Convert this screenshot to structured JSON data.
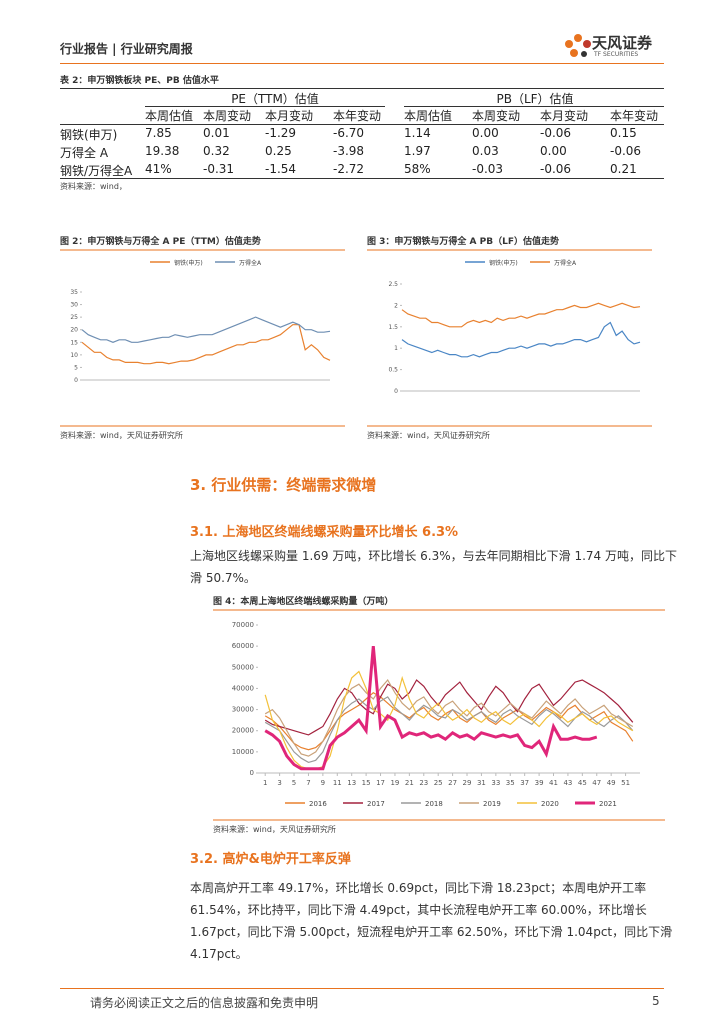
{
  "header": {
    "title": "行业报告 | 行业研究周报",
    "brand": "天风证券",
    "brand_en": "TF SECURITIES"
  },
  "table": {
    "title": "表 2：申万钢铁板块 PE、PB 估值水平",
    "groups": [
      "PE（TTM）估值",
      "PB（LF）估值"
    ],
    "columns": [
      "本周估值",
      "本周变动",
      "本月变动",
      "本年变动",
      "本周估值",
      "本周变动",
      "本月变动",
      "本年变动"
    ],
    "rows": [
      [
        "钢铁(申万)",
        "7.85",
        "0.01",
        "-1.29",
        "-6.70",
        "1.14",
        "0.00",
        "-0.06",
        "0.15"
      ],
      [
        "万得全 A",
        "19.38",
        "0.32",
        "0.25",
        "-3.98",
        "1.97",
        "0.03",
        "0.00",
        "-0.06"
      ],
      [
        "钢铁/万得全A",
        "41%",
        "-0.31",
        "-1.54",
        "-2.72",
        "58%",
        "-0.03",
        "-0.06",
        "0.21"
      ]
    ],
    "source": "资料来源：wind，"
  },
  "chart_data": [
    {
      "type": "line",
      "title": "图 2：申万钢铁与万得全 A PE（TTM）估值走势",
      "source": "资料来源：wind，天风证券研究所",
      "ylim": [
        0,
        35
      ],
      "yticks": [
        0,
        5,
        10,
        15,
        20,
        25,
        30,
        35
      ],
      "legend": "top",
      "series": [
        {
          "name": "钢铁(申万)",
          "color": "#e8812f",
          "values": [
            15,
            13,
            11,
            11,
            9,
            8,
            8,
            7,
            7,
            7,
            6.5,
            6.5,
            7,
            7,
            6.5,
            7,
            7.5,
            7.5,
            8,
            9,
            10,
            10,
            11,
            12,
            13,
            14,
            14,
            15,
            15,
            16,
            16,
            17,
            18,
            20,
            22,
            22,
            12,
            14,
            12,
            9,
            7.85
          ]
        },
        {
          "name": "万得全A",
          "color": "#6f8fb3",
          "values": [
            20,
            18,
            17,
            16,
            16,
            15,
            16,
            16,
            15,
            15,
            15.5,
            16,
            16.5,
            17,
            17,
            18,
            17.5,
            17,
            17.5,
            18,
            18,
            18,
            19,
            20,
            21,
            22,
            23,
            24,
            25,
            24,
            23,
            22,
            21,
            22,
            23,
            22,
            20,
            20,
            19,
            19,
            19.38
          ]
        }
      ]
    },
    {
      "type": "line",
      "title": "图 3：申万钢铁与万得全 A PB（LF）估值走势",
      "source": "资料来源：wind，天风证券研究所",
      "ylim": [
        0,
        2.5
      ],
      "yticks": [
        0,
        0.5,
        1,
        1.5,
        2,
        2.5
      ],
      "legend": "top",
      "series": [
        {
          "name": "钢铁(申万)",
          "color": "#4a86c5",
          "values": [
            1.2,
            1.1,
            1.05,
            1.0,
            0.95,
            0.9,
            0.95,
            0.9,
            0.85,
            0.85,
            0.8,
            0.8,
            0.85,
            0.8,
            0.85,
            0.9,
            0.9,
            0.95,
            1.0,
            1.0,
            1.05,
            1.0,
            1.05,
            1.1,
            1.1,
            1.05,
            1.1,
            1.1,
            1.15,
            1.2,
            1.2,
            1.15,
            1.2,
            1.25,
            1.5,
            1.6,
            1.3,
            1.4,
            1.2,
            1.1,
            1.14
          ]
        },
        {
          "name": "万得全A",
          "color": "#e8812f",
          "values": [
            1.9,
            1.8,
            1.75,
            1.7,
            1.7,
            1.6,
            1.6,
            1.55,
            1.5,
            1.5,
            1.5,
            1.6,
            1.65,
            1.6,
            1.65,
            1.6,
            1.7,
            1.65,
            1.7,
            1.7,
            1.75,
            1.7,
            1.75,
            1.8,
            1.8,
            1.85,
            1.9,
            1.9,
            1.95,
            2.0,
            1.95,
            1.95,
            2.0,
            2.05,
            2.0,
            1.95,
            2.0,
            2.05,
            2.0,
            1.95,
            1.97
          ]
        }
      ]
    },
    {
      "type": "line",
      "title": "图 4：本周上海地区终端线螺采购量（万吨）",
      "source": "资料来源：wind，天风证券研究所",
      "xlim": [
        0,
        53
      ],
      "xticks": [
        1,
        3,
        5,
        7,
        9,
        11,
        13,
        15,
        17,
        19,
        21,
        23,
        25,
        27,
        29,
        31,
        33,
        35,
        37,
        39,
        41,
        43,
        45,
        47,
        49,
        51
      ],
      "ylim": [
        0,
        70000
      ],
      "yticks": [
        0,
        10000,
        20000,
        30000,
        40000,
        50000,
        60000,
        70000
      ],
      "legend": "bottom",
      "x": [
        1,
        2,
        3,
        4,
        5,
        6,
        7,
        8,
        9,
        10,
        11,
        12,
        13,
        14,
        15,
        16,
        17,
        18,
        19,
        20,
        21,
        22,
        23,
        24,
        25,
        26,
        27,
        28,
        29,
        30,
        31,
        32,
        33,
        34,
        35,
        36,
        37,
        38,
        39,
        40,
        41,
        42,
        43,
        44,
        45,
        46,
        47,
        48,
        49,
        50,
        51,
        52
      ],
      "series": [
        {
          "name": "2016",
          "color": "#e8812f",
          "values": [
            27000,
            25000,
            22000,
            18000,
            14000,
            12000,
            11000,
            12000,
            15000,
            20000,
            25000,
            28000,
            30000,
            32000,
            35000,
            38000,
            36000,
            33000,
            30000,
            28000,
            26000,
            29000,
            31000,
            27000,
            25000,
            28000,
            30000,
            26000,
            24000,
            27000,
            29000,
            25000,
            23000,
            26000,
            28000,
            30000,
            27000,
            25000,
            28000,
            31000,
            29000,
            26000,
            30000,
            32000,
            28000,
            25000,
            27000,
            29000,
            24000,
            22000,
            20000,
            15000
          ]
        },
        {
          "name": "2017",
          "color": "#a3223e",
          "values": [
            25000,
            23000,
            22000,
            21000,
            20000,
            19000,
            18000,
            20000,
            22000,
            28000,
            35000,
            40000,
            38000,
            33000,
            30000,
            28000,
            36000,
            42000,
            40000,
            35000,
            38000,
            44000,
            41000,
            36000,
            32000,
            37000,
            40000,
            43000,
            38000,
            34000,
            30000,
            36000,
            41000,
            38000,
            33000,
            29000,
            35000,
            40000,
            42000,
            37000,
            32000,
            35000,
            39000,
            43000,
            44000,
            42000,
            40000,
            38000,
            35000,
            32000,
            28000,
            24000
          ]
        },
        {
          "name": "2018",
          "color": "#9a9a9a",
          "values": [
            24000,
            22000,
            20000,
            15000,
            10000,
            7000,
            5000,
            6000,
            10000,
            18000,
            25000,
            30000,
            33000,
            35000,
            32000,
            30000,
            34000,
            36000,
            31000,
            28000,
            25000,
            29000,
            32000,
            30000,
            27000,
            26000,
            30000,
            28000,
            25000,
            27000,
            29000,
            26000,
            24000,
            28000,
            30000,
            27000,
            25000,
            23000,
            27000,
            30000,
            28000,
            25000,
            22000,
            26000,
            29000,
            27000,
            24000,
            22000,
            25000,
            27000,
            24000,
            20000
          ]
        },
        {
          "name": "2019",
          "color": "#c9a27a",
          "values": [
            28000,
            30000,
            26000,
            20000,
            14000,
            9000,
            8000,
            10000,
            15000,
            22000,
            30000,
            36000,
            40000,
            42000,
            38000,
            35000,
            40000,
            44000,
            38000,
            33000,
            30000,
            34000,
            36000,
            31000,
            28000,
            32000,
            34000,
            30000,
            27000,
            31000,
            33000,
            29000,
            27000,
            30000,
            33000,
            30000,
            28000,
            26000,
            30000,
            34000,
            31000,
            28000,
            32000,
            35000,
            31000,
            28000,
            30000,
            32000,
            28000,
            26000,
            24000,
            22000
          ]
        },
        {
          "name": "2020",
          "color": "#f3c13a",
          "values": [
            37000,
            25000,
            20000,
            12000,
            6000,
            3000,
            2000,
            2000,
            3000,
            8000,
            20000,
            35000,
            45000,
            48000,
            40000,
            30000,
            28000,
            25000,
            32000,
            45000,
            35000,
            28000,
            26000,
            30000,
            33000,
            28000,
            25000,
            27000,
            30000,
            26000,
            24000,
            27000,
            29000,
            25000,
            23000,
            26000,
            28000,
            25000,
            22000,
            26000,
            29000,
            27000,
            24000,
            26000,
            28000,
            25000,
            23000,
            26000,
            27000,
            24000,
            22000,
            20000
          ]
        },
        {
          "name": "2021",
          "color": "#e0267a",
          "values": [
            20000,
            18000,
            15000,
            8000,
            4000,
            2000,
            2000,
            2000,
            2000,
            13000,
            17000,
            19000,
            22000,
            25000,
            20000,
            60000,
            22000,
            27000,
            25000,
            17000,
            19000,
            18000,
            19000,
            17000,
            18000,
            16000,
            19000,
            17000,
            18000,
            16000,
            19000,
            18000,
            17000,
            18000,
            17000,
            18000,
            13000,
            12000,
            15000,
            9000,
            22000,
            16000,
            16000,
            17000,
            16000,
            16000,
            17000,
            null,
            null,
            null,
            null,
            null
          ],
          "width": 3
        }
      ]
    }
  ],
  "sections": [
    {
      "heading": "3. 行业供需：终端需求微增"
    },
    {
      "heading": "3.1. 上海地区终端线螺采购量环比增长 6.3%",
      "text": "上海地区线螺采购量 1.69 万吨，环比增长 6.3%，与去年同期相比下滑 1.74 万吨，同比下滑 50.7%。"
    },
    {
      "heading": "3.2. 高炉&电炉开工率反弹",
      "text": "本周高炉开工率 49.17%，环比增长 0.69pct，同比下滑 18.23pct；本周电炉开工率 61.54%，环比持平，同比下滑 4.49pct，其中长流程电炉开工率 60.00%，环比增长 1.67pct，同比下滑 5.00pct，短流程电炉开工率 62.50%，环比下滑 1.04pct，同比下滑 4.17pct。"
    }
  ],
  "footer": {
    "text": "请务必阅读正文之后的信息披露和免责申明",
    "page": "5"
  }
}
